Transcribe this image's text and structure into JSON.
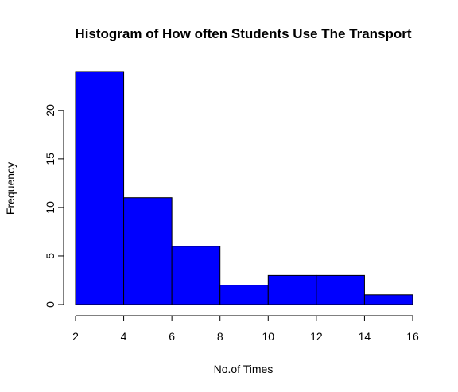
{
  "colors": {
    "bar_fill": "#0000ff",
    "bar_stroke": "#000000",
    "background": "#ffffff"
  },
  "chart_data": {
    "type": "bar",
    "title": "Histogram of How often Students Use The Transport",
    "xlabel": "No.of Times",
    "ylabel": "Frequency",
    "bins": [
      [
        2,
        4
      ],
      [
        4,
        6
      ],
      [
        6,
        8
      ],
      [
        8,
        10
      ],
      [
        10,
        12
      ],
      [
        12,
        14
      ],
      [
        14,
        16
      ]
    ],
    "values": [
      24,
      11,
      6,
      2,
      3,
      3,
      1
    ],
    "xlim": [
      2,
      16
    ],
    "ylim": [
      0,
      24
    ],
    "xticks": [
      2,
      4,
      6,
      8,
      10,
      12,
      14,
      16
    ],
    "yticks": [
      0,
      5,
      10,
      15,
      20
    ],
    "grid": false,
    "legend": "none"
  }
}
